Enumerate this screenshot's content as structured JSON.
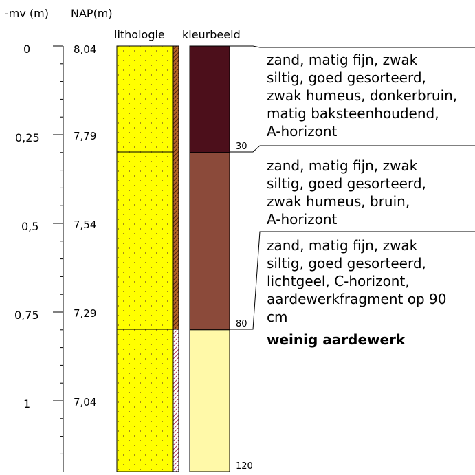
{
  "headers": {
    "depth": "-mv (m)",
    "nap": "NAP(m)",
    "lithology": "lithologie",
    "color": "kleurbeeld"
  },
  "scale": {
    "depth_labels": [
      "0",
      "0,25",
      "0,5",
      "0,75",
      "1"
    ],
    "nap_labels": [
      "8,04",
      "7,79",
      "7,54",
      "7,29",
      "7,04"
    ]
  },
  "layers": [
    {
      "top_cm": 0,
      "bottom_cm": 30,
      "color": "#4c0f1b",
      "lithology_fill": "#ffff00",
      "description": "zand, matig fijn, zwak\nsiltig, goed gesorteerd,\nzwak humeus, donkerbruin,\nmatig baksteenhoudend,\nA-horizont"
    },
    {
      "top_cm": 30,
      "bottom_cm": 80,
      "color": "#8b4a3a",
      "lithology_fill": "#ffff00",
      "description": "zand, matig fijn, zwak\nsiltig, goed gesorteerd,\nzwak humeus, bruin,\nA-horizont"
    },
    {
      "top_cm": 80,
      "bottom_cm": 120,
      "color": "#fff9a8",
      "lithology_fill": "#ffff00",
      "description": "zand, matig fijn, zwak\nsiltig, goed gesorteerd,\nlichtgeel, C-horizont,\naardewerkfragment op 90\ncm"
    }
  ],
  "boundary_labels": [
    "30",
    "80",
    "120"
  ],
  "note": "weinig aardewerk",
  "colors": {
    "sand_dots": "#8a6a20",
    "brick_column": "#b5652a"
  }
}
